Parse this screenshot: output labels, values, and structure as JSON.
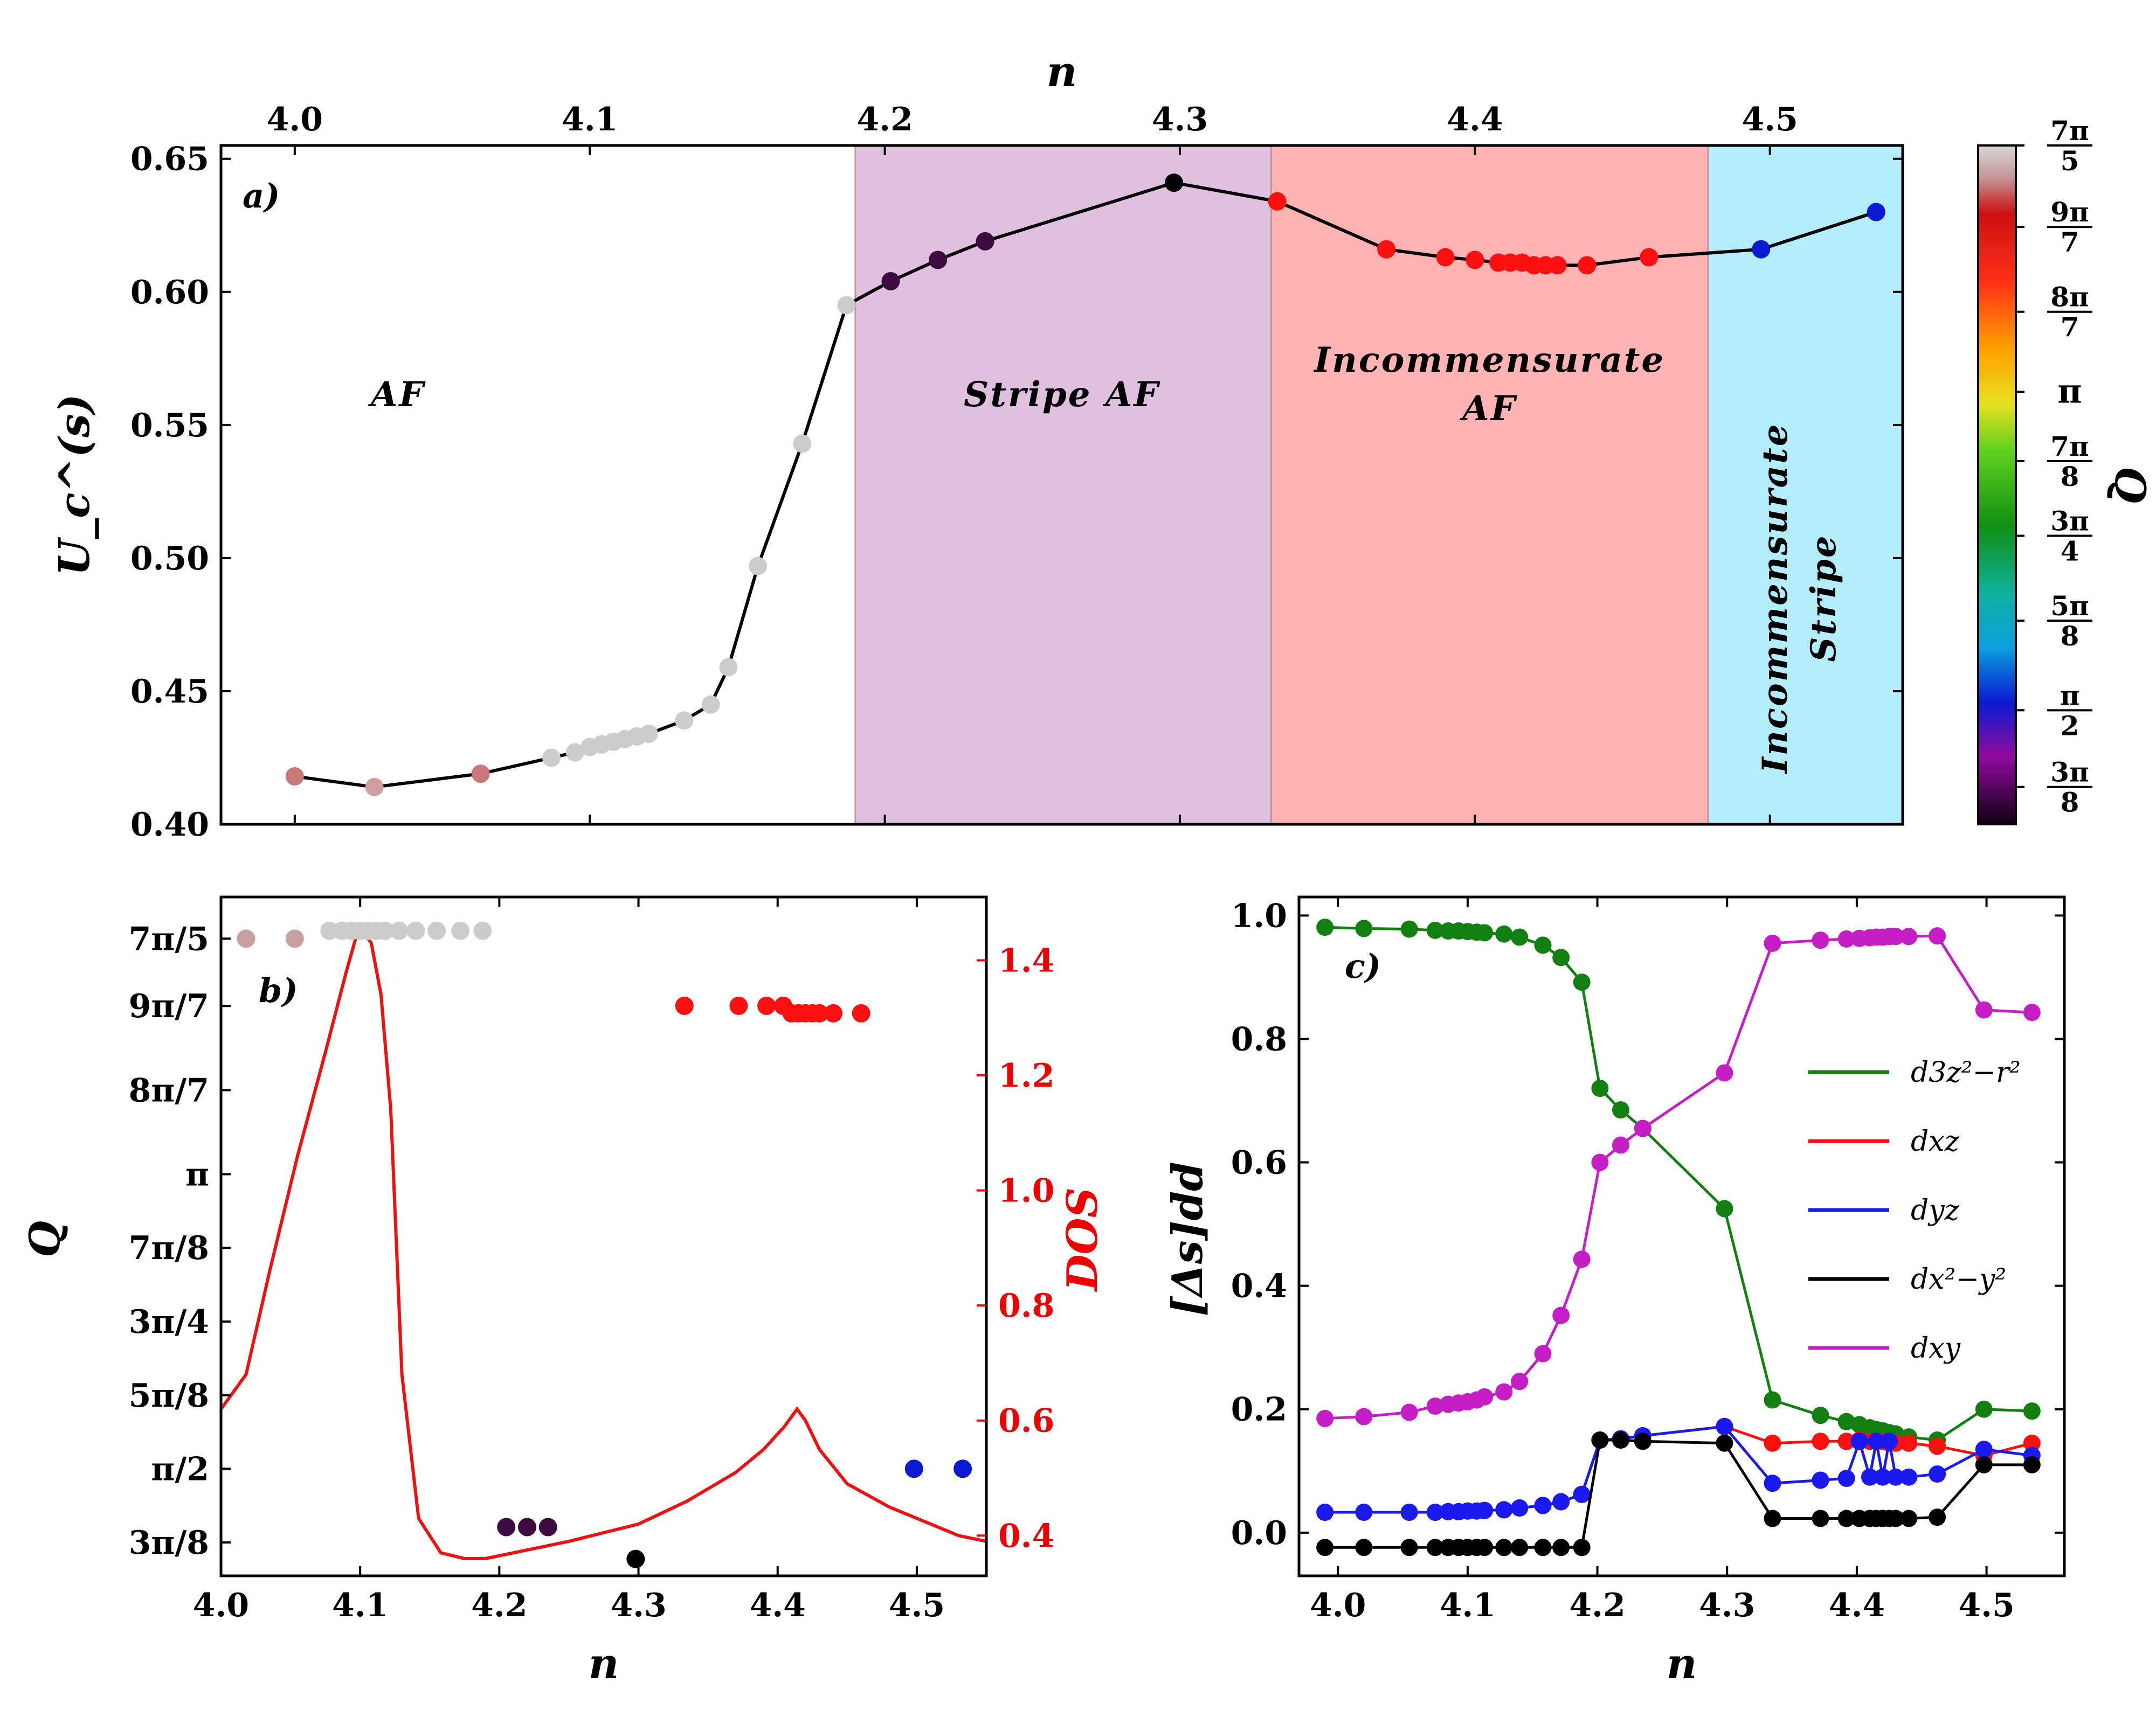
{
  "chart_data": [
    {
      "panel_label": "a)",
      "type": "scatter",
      "xlabel_top": "n",
      "ylabel": "U_c^(s)",
      "xlim": [
        3.975,
        4.545
      ],
      "ylim": [
        0.4,
        0.655
      ],
      "xticks": [
        "4.0",
        "4.1",
        "4.2",
        "4.3",
        "4.4",
        "4.5"
      ],
      "xtick_values": [
        4.0,
        4.1,
        4.2,
        4.3,
        4.4,
        4.5
      ],
      "yticks": [
        "0.40",
        "0.45",
        "0.50",
        "0.55",
        "0.60",
        "0.65"
      ],
      "ytick_values": [
        0.4,
        0.45,
        0.5,
        0.55,
        0.6,
        0.65
      ],
      "regions": [
        {
          "x0": 3.975,
          "x1": 4.19,
          "color": "#ffffff",
          "label_lines": [
            "AF"
          ],
          "label_at": [
            4.035,
            0.557
          ],
          "rotate": 0
        },
        {
          "x0": 4.19,
          "x1": 4.331,
          "color": "#dfc0df",
          "label_lines": [
            "Stripe AF"
          ],
          "label_at": [
            4.26,
            0.557
          ],
          "rotate": 0
        },
        {
          "x0": 4.331,
          "x1": 4.479,
          "color": "#ffb3b3",
          "label_lines": [
            "Incommensurate",
            "AF"
          ],
          "label_at": [
            4.405,
            0.57
          ],
          "rotate": 0
        },
        {
          "x0": 4.479,
          "x1": 4.545,
          "color": "#b3ecfb",
          "label_lines": [
            "Incommensurate",
            "Stripe"
          ],
          "label_at": [
            4.513,
            0.485
          ],
          "rotate": -90
        }
      ],
      "x": [
        4.0,
        4.027,
        4.063,
        4.087,
        4.095,
        4.1,
        4.104,
        4.108,
        4.112,
        4.116,
        4.12,
        4.132,
        4.141,
        4.147,
        4.157,
        4.172,
        4.187,
        4.202,
        4.218,
        4.234,
        4.298,
        4.333,
        4.37,
        4.39,
        4.4,
        4.408,
        4.412,
        4.416,
        4.42,
        4.424,
        4.428,
        4.438,
        4.459,
        4.497,
        4.536
      ],
      "y": [
        0.418,
        0.414,
        0.419,
        0.425,
        0.427,
        0.429,
        0.43,
        0.431,
        0.432,
        0.433,
        0.434,
        0.439,
        0.445,
        0.459,
        0.497,
        0.543,
        0.595,
        0.604,
        0.612,
        0.619,
        0.641,
        0.634,
        0.616,
        0.613,
        0.612,
        0.611,
        0.611,
        0.611,
        0.61,
        0.61,
        0.61,
        0.61,
        0.613,
        0.616,
        0.63
      ],
      "point_colors": [
        "#c87878",
        "#d0a0a0",
        "#c87878",
        "#cccccc",
        "#cccccc",
        "#cccccc",
        "#cccccc",
        "#cccccc",
        "#cccccc",
        "#cccccc",
        "#cccccc",
        "#cccccc",
        "#cccccc",
        "#cccccc",
        "#cccccc",
        "#cccccc",
        "#cccccc",
        "#3a0a40",
        "#3a0a40",
        "#3a0a40",
        "#000000",
        "#ff1010",
        "#ff1010",
        "#ff1010",
        "#ff1010",
        "#ff1010",
        "#ff1010",
        "#ff1010",
        "#ff1010",
        "#ff1010",
        "#ff1010",
        "#ff1010",
        "#ff1010",
        "#0a1ad0",
        "#0a1ad0"
      ]
    },
    {
      "panel_label": "b)",
      "type": "scatter",
      "xlabel": "n",
      "ylabel": "Q",
      "ylabel_right": "DOS",
      "xlim": [
        4.0,
        4.55
      ],
      "xticks": [
        "4.0",
        "4.1",
        "4.2",
        "4.3",
        "4.4",
        "4.5"
      ],
      "xtick_values": [
        4.0,
        4.1,
        4.2,
        4.3,
        4.4,
        4.5
      ],
      "ylim": [
        1.0,
        4.62
      ],
      "yticks": [
        "3π/8",
        "π/2",
        "5π/8",
        "3π/4",
        "7π/8",
        "π",
        "8π/7",
        "9π/7",
        "7π/5"
      ],
      "ytick_values": [
        1.178,
        1.571,
        1.963,
        2.356,
        2.749,
        3.142,
        3.59,
        4.039,
        4.398
      ],
      "ylim_right": [
        0.33,
        1.51
      ],
      "yticks_right": [
        "0.4",
        "0.6",
        "0.8",
        "1.0",
        "1.2",
        "1.4"
      ],
      "ytick_values_right": [
        0.4,
        0.6,
        0.8,
        1.0,
        1.2,
        1.4
      ],
      "Q_x": [
        4.018,
        4.053,
        4.078,
        4.087,
        4.094,
        4.1,
        4.106,
        4.112,
        4.118,
        4.128,
        4.14,
        4.155,
        4.172,
        4.188,
        4.205,
        4.22,
        4.235,
        4.298,
        4.333,
        4.372,
        4.392,
        4.404,
        4.41,
        4.415,
        4.42,
        4.425,
        4.43,
        4.44,
        4.46,
        4.498,
        4.533
      ],
      "Q_y": [
        4.398,
        4.398,
        4.44,
        4.44,
        4.44,
        4.44,
        4.44,
        4.44,
        4.44,
        4.44,
        4.44,
        4.44,
        4.44,
        4.44,
        1.26,
        1.26,
        1.26,
        1.09,
        4.04,
        4.04,
        4.04,
        4.04,
        4.0,
        4.0,
        4.0,
        4.0,
        4.0,
        4.0,
        4.0,
        1.571,
        1.571
      ],
      "Q_colors": [
        "#c8a0a0",
        "#c8a0a0",
        "#cccccc",
        "#cccccc",
        "#cccccc",
        "#cccccc",
        "#cccccc",
        "#cccccc",
        "#cccccc",
        "#cccccc",
        "#cccccc",
        "#cccccc",
        "#cccccc",
        "#cccccc",
        "#3a0a40",
        "#3a0a40",
        "#3a0a40",
        "#000000",
        "#ff1010",
        "#ff1010",
        "#ff1010",
        "#ff1010",
        "#ff1010",
        "#ff1010",
        "#ff1010",
        "#ff1010",
        "#ff1010",
        "#ff1010",
        "#ff1010",
        "#0a1ad0",
        "#0a1ad0"
      ],
      "DOS_x": [
        4.0,
        4.018,
        4.035,
        4.055,
        4.075,
        4.09,
        4.097,
        4.102,
        4.108,
        4.115,
        4.122,
        4.13,
        4.142,
        4.158,
        4.175,
        4.19,
        4.21,
        4.25,
        4.3,
        4.335,
        4.37,
        4.39,
        4.405,
        4.414,
        4.42,
        4.43,
        4.45,
        4.48,
        4.51,
        4.53,
        4.55
      ],
      "DOS_y": [
        0.62,
        0.68,
        0.86,
        1.06,
        1.24,
        1.38,
        1.44,
        1.45,
        1.43,
        1.34,
        1.14,
        0.68,
        0.43,
        0.37,
        0.36,
        0.36,
        0.37,
        0.39,
        0.42,
        0.46,
        0.51,
        0.55,
        0.59,
        0.62,
        0.6,
        0.55,
        0.49,
        0.45,
        0.42,
        0.4,
        0.39
      ]
    },
    {
      "panel_label": "c)",
      "type": "line",
      "xlabel": "n",
      "ylabel": "[Δs]dd",
      "xlim": [
        3.97,
        4.56
      ],
      "ylim": [
        -0.07,
        1.03
      ],
      "xticks": [
        "4.0",
        "4.1",
        "4.2",
        "4.3",
        "4.4",
        "4.5"
      ],
      "xtick_values": [
        4.0,
        4.1,
        4.2,
        4.3,
        4.4,
        4.5
      ],
      "yticks": [
        "0.0",
        "0.2",
        "0.4",
        "0.6",
        "0.8",
        "1.0"
      ],
      "ytick_values": [
        0.0,
        0.2,
        0.4,
        0.6,
        0.8,
        1.0
      ],
      "legend_position": "right",
      "x": [
        3.99,
        4.02,
        4.055,
        4.075,
        4.085,
        4.093,
        4.1,
        4.107,
        4.113,
        4.128,
        4.14,
        4.158,
        4.172,
        4.188,
        4.202,
        4.218,
        4.235,
        4.298,
        4.335,
        4.372,
        4.392,
        4.402,
        4.41,
        4.415,
        4.42,
        4.425,
        4.43,
        4.44,
        4.462,
        4.498,
        4.535
      ],
      "series": [
        {
          "name": "d3z²−r²",
          "color": "#118011",
          "values": [
            0.981,
            0.979,
            0.978,
            0.976,
            0.975,
            0.975,
            0.974,
            0.973,
            0.972,
            0.97,
            0.965,
            0.952,
            0.932,
            0.892,
            0.72,
            0.685,
            0.655,
            0.525,
            0.215,
            0.19,
            0.18,
            0.175,
            0.17,
            0.167,
            0.165,
            0.162,
            0.16,
            0.155,
            0.15,
            0.2,
            0.197
          ]
        },
        {
          "name": "dxz",
          "color": "#ff1010",
          "values": [
            0.033,
            0.033,
            0.033,
            0.033,
            0.034,
            0.034,
            0.035,
            0.035,
            0.036,
            0.037,
            0.04,
            0.044,
            0.05,
            0.062,
            0.15,
            0.152,
            0.157,
            0.172,
            0.145,
            0.148,
            0.148,
            0.15,
            0.148,
            0.148,
            0.148,
            0.145,
            0.145,
            0.145,
            0.14,
            0.125,
            0.145
          ]
        },
        {
          "name": "dyz",
          "color": "#1a1aee",
          "values": [
            0.033,
            0.033,
            0.033,
            0.033,
            0.034,
            0.034,
            0.035,
            0.035,
            0.036,
            0.037,
            0.04,
            0.044,
            0.05,
            0.062,
            0.15,
            0.152,
            0.157,
            0.172,
            0.08,
            0.085,
            0.088,
            0.148,
            0.09,
            0.148,
            0.09,
            0.148,
            0.09,
            0.09,
            0.095,
            0.135,
            0.125
          ]
        },
        {
          "name": "dx²−y²",
          "color": "#000000",
          "values": [
            -0.024,
            -0.024,
            -0.024,
            -0.024,
            -0.024,
            -0.024,
            -0.024,
            -0.024,
            -0.024,
            -0.024,
            -0.024,
            -0.024,
            -0.024,
            -0.024,
            0.15,
            0.15,
            0.148,
            0.145,
            0.023,
            0.023,
            0.023,
            0.023,
            0.023,
            0.023,
            0.023,
            0.023,
            0.023,
            0.023,
            0.025,
            0.11,
            0.11
          ]
        },
        {
          "name": "dxy",
          "color": "#c61ec6",
          "values": [
            0.185,
            0.188,
            0.195,
            0.205,
            0.208,
            0.21,
            0.212,
            0.215,
            0.22,
            0.228,
            0.245,
            0.29,
            0.352,
            0.443,
            0.6,
            0.628,
            0.655,
            0.745,
            0.955,
            0.96,
            0.962,
            0.963,
            0.964,
            0.965,
            0.965,
            0.966,
            0.966,
            0.966,
            0.967,
            0.847,
            0.843
          ]
        }
      ]
    }
  ],
  "colorbar": {
    "label": "Q",
    "tick_labels": [
      {
        "num": "7π",
        "den": "5",
        "frac": 1.0
      },
      {
        "num": "9π",
        "den": "7",
        "frac": 0.88
      },
      {
        "num": "8π",
        "den": "7",
        "frac": 0.755
      },
      {
        "num": "π",
        "den": "",
        "frac": 0.637
      },
      {
        "num": "7π",
        "den": "8",
        "frac": 0.535
      },
      {
        "num": "3π",
        "den": "4",
        "frac": 0.425
      },
      {
        "num": "5π",
        "den": "8",
        "frac": 0.3
      },
      {
        "num": "π",
        "den": "2",
        "frac": 0.168
      },
      {
        "num": "3π",
        "den": "8",
        "frac": 0.055
      }
    ],
    "gradient": [
      {
        "offset": 0.0,
        "color": "#d8d8d8"
      },
      {
        "offset": 0.05,
        "color": "#c49090"
      },
      {
        "offset": 0.1,
        "color": "#cc1010"
      },
      {
        "offset": 0.2,
        "color": "#ff3018"
      },
      {
        "offset": 0.3,
        "color": "#ffa000"
      },
      {
        "offset": 0.38,
        "color": "#e8e020"
      },
      {
        "offset": 0.45,
        "color": "#60d020"
      },
      {
        "offset": 0.56,
        "color": "#109010"
      },
      {
        "offset": 0.66,
        "color": "#10b0a0"
      },
      {
        "offset": 0.74,
        "color": "#0aa0e0"
      },
      {
        "offset": 0.82,
        "color": "#0a1ad0"
      },
      {
        "offset": 0.9,
        "color": "#900aa0"
      },
      {
        "offset": 1.0,
        "color": "#100010"
      }
    ]
  }
}
